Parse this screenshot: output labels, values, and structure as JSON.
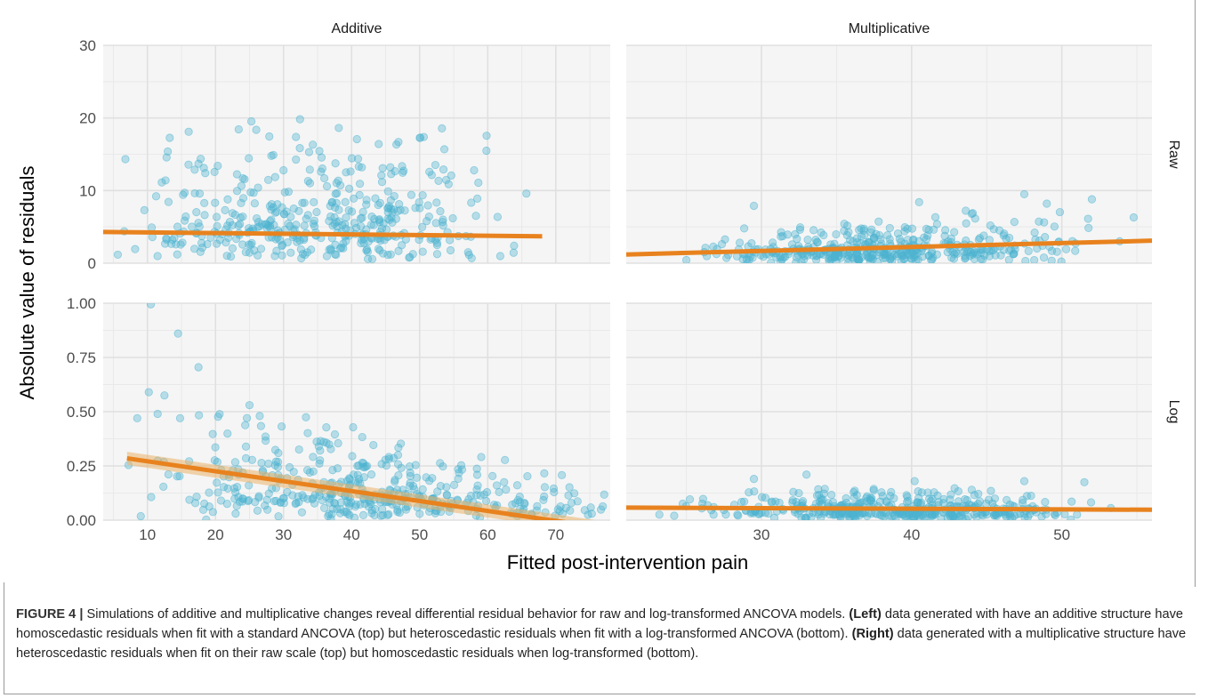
{
  "chart_data": {
    "type": "scatter",
    "xlabel": "Fitted post-intervention pain",
    "ylabel": "Absolute value of residuals",
    "facet_columns": [
      "Additive",
      "Multiplicative"
    ],
    "facet_rows": [
      "Raw",
      "Log"
    ],
    "grid": true,
    "point_color": "#4db3cf",
    "line_color": "#e8821e",
    "panels": [
      {
        "column": "Additive",
        "row": "Raw",
        "xlim": [
          3.5,
          78
        ],
        "ylim": [
          0,
          30
        ],
        "x_ticks": [
          10,
          20,
          30,
          40,
          50,
          60,
          70
        ],
        "y_ticks": [
          0,
          10,
          20,
          30
        ],
        "x_range_points": [
          3.5,
          68
        ],
        "y_max_points": 15,
        "spread": "constant",
        "fit": [
          [
            3.5,
            4.3
          ],
          [
            68,
            3.7
          ]
        ],
        "ribbon": false,
        "highlights": [
          [
            17.5,
            13.7
          ],
          [
            28.5,
            14.9
          ],
          [
            41.5,
            13.2
          ],
          [
            35.5,
            12.6
          ],
          [
            53.5,
            12.9
          ],
          [
            58,
            12.8
          ],
          [
            18.5,
            12.4
          ],
          [
            30,
            12.8
          ]
        ]
      },
      {
        "column": "Multiplicative",
        "row": "Raw",
        "xlim": [
          21,
          56
        ],
        "ylim": [
          0,
          30
        ],
        "x_ticks": [
          30,
          40,
          50
        ],
        "y_ticks": [
          0,
          10,
          20,
          30
        ],
        "x_range_points": [
          21,
          56
        ],
        "y_max_points": 5,
        "spread": "increasing",
        "fit": [
          [
            21,
            1.2
          ],
          [
            56,
            3.1
          ]
        ],
        "ribbon": false,
        "highlights": [
          [
            47.5,
            9.5
          ],
          [
            40.5,
            8.4
          ],
          [
            52,
            8.8
          ],
          [
            29.5,
            7.9
          ],
          [
            49,
            8.2
          ],
          [
            44,
            6.8
          ]
        ]
      },
      {
        "column": "Additive",
        "row": "Log",
        "xlim": [
          3.5,
          78
        ],
        "ylim": [
          0,
          1
        ],
        "x_ticks": [
          10,
          20,
          30,
          40,
          50,
          60,
          70
        ],
        "y_ticks": [
          0,
          0.25,
          0.5,
          0.75,
          1.0
        ],
        "x_range_points": [
          6,
          78
        ],
        "y_max_points": 0.5,
        "spread": "decreasing",
        "fit": [
          [
            7,
            0.285
          ],
          [
            75,
            0
          ]
        ],
        "ribbon": true,
        "highlights": [
          [
            10.5,
            0.995
          ],
          [
            14.5,
            0.86
          ],
          [
            17.5,
            0.705
          ],
          [
            10.2,
            0.59
          ],
          [
            12.5,
            0.575
          ],
          [
            8.5,
            0.47
          ],
          [
            14.8,
            0.47
          ],
          [
            25,
            0.53
          ],
          [
            26.5,
            0.48
          ],
          [
            11.5,
            0.49
          ]
        ]
      },
      {
        "column": "Multiplicative",
        "row": "Log",
        "xlim": [
          21,
          56
        ],
        "ylim": [
          0,
          1
        ],
        "x_ticks": [
          30,
          40,
          50
        ],
        "y_ticks": [
          0,
          0.25,
          0.5,
          0.75,
          1.0
        ],
        "x_range_points": [
          21,
          56
        ],
        "y_max_points": 0.12,
        "spread": "constant",
        "fit": [
          [
            21,
            0.058
          ],
          [
            56,
            0.048
          ]
        ],
        "ribbon": false,
        "highlights": [
          [
            33,
            0.21
          ],
          [
            29.5,
            0.19
          ],
          [
            40.2,
            0.18
          ],
          [
            51.5,
            0.175
          ],
          [
            47.5,
            0.18
          ],
          [
            44,
            0.14
          ]
        ]
      }
    ]
  },
  "caption": {
    "label": "FIGURE 4 |",
    "intro": " Simulations of additive and multiplicative changes reveal differential residual behavior for raw and log-transformed ANCOVA models. ",
    "left_label": "(Left)",
    "left_text": " data generated with have an additive structure have homoscedastic residuals when fit with a standard ANCOVA (top) but heteroscedastic residuals when fit with a log-transformed ANCOVA (bottom). ",
    "right_label": "(Right)",
    "right_text": " data generated with a multiplicative structure have heteroscedastic residuals when fit on their raw scale (top) but homoscedastic residuals when log-transformed (bottom)."
  }
}
